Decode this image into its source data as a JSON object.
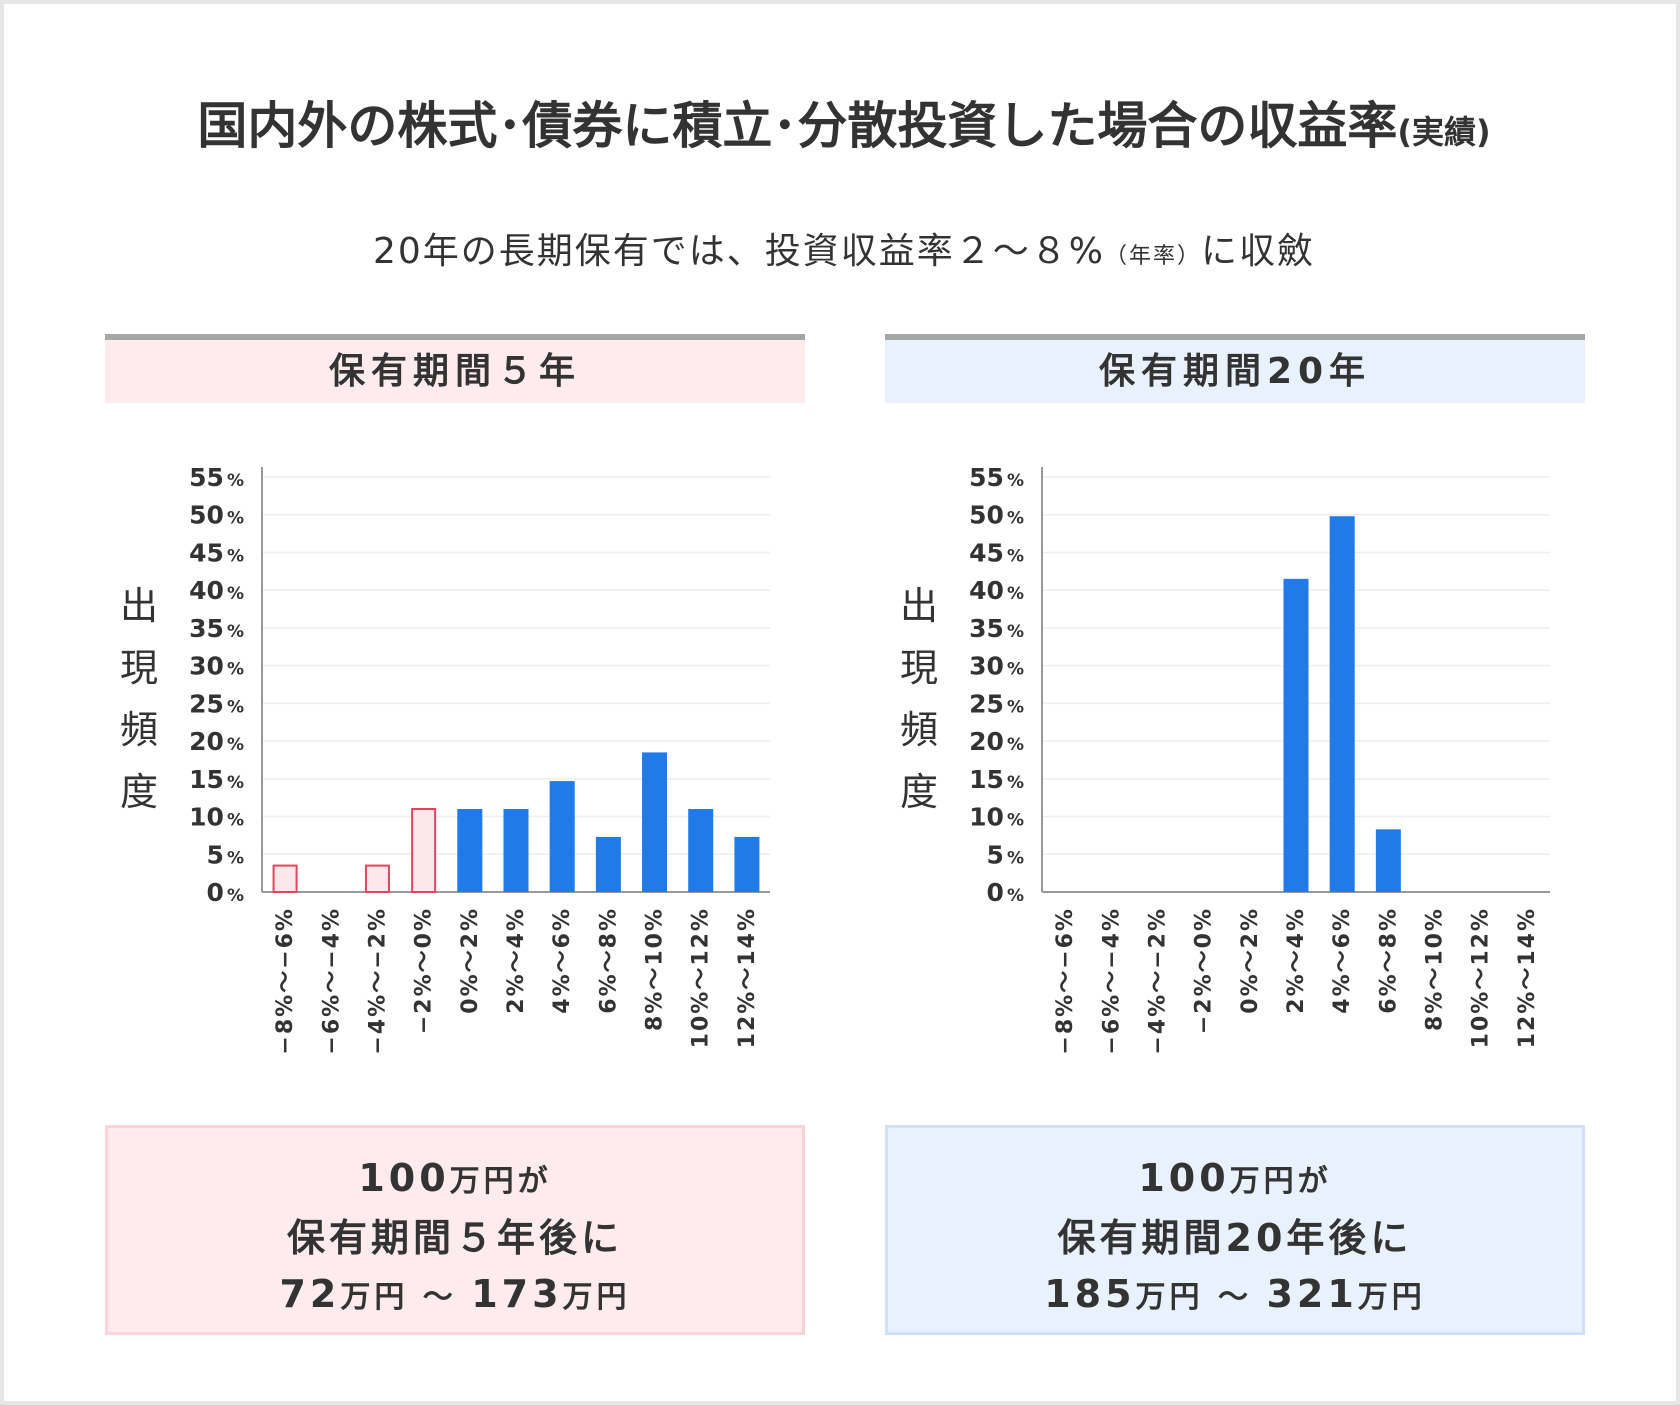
{
  "title": {
    "main": "国内外の株式･債券に積立･分散投資した場合の収益率",
    "suffix": "(実績)"
  },
  "subtitle": {
    "before": "20年の長期保有では、投資収益率２〜８%",
    "note": "（年率）",
    "after": "に収斂"
  },
  "panels": [
    {
      "header": "保有期間５年",
      "result": {
        "line1_num": "100",
        "line1_unit": "万円が",
        "line2": "保有期間５年後に",
        "line3_a": "72",
        "line3_b": "万円 〜 ",
        "line3_c": "173",
        "line3_d": "万円"
      }
    },
    {
      "header": "保有期間20年",
      "result": {
        "line1_num": "100",
        "line1_unit": "万円が",
        "line2": "保有期間20年後に",
        "line3_a": "185",
        "line3_b": "万円 〜 ",
        "line3_c": "321",
        "line3_d": "万円"
      }
    }
  ],
  "colors": {
    "negative_outline": "#e0475f",
    "negative_fill": "#fce8ec",
    "positive": "#207ae8",
    "axis": "#999999",
    "grid": "#eeeeee",
    "text": "#333333"
  },
  "chart_data": [
    {
      "type": "bar",
      "ylabel": "出現頻度",
      "ylim": [
        0,
        55
      ],
      "yticks": [
        "0%",
        "5%",
        "10%",
        "15%",
        "20%",
        "25%",
        "30%",
        "35%",
        "40%",
        "45%",
        "50%",
        "55%"
      ],
      "categories": [
        "−8%〜−6%",
        "−6%〜−4%",
        "−4%〜−2%",
        "−2%〜0%",
        "0%〜2%",
        "2%〜4%",
        "4%〜6%",
        "6%〜8%",
        "8%〜10%",
        "10%〜12%",
        "12%〜14%"
      ],
      "values": [
        3.5,
        0,
        3.5,
        11,
        11,
        11,
        14.7,
        7.3,
        18.5,
        11,
        7.3
      ],
      "negative_count": 4,
      "grid": true
    },
    {
      "type": "bar",
      "ylabel": "出現頻度",
      "ylim": [
        0,
        55
      ],
      "yticks": [
        "0%",
        "5%",
        "10%",
        "15%",
        "20%",
        "25%",
        "30%",
        "35%",
        "40%",
        "45%",
        "50%",
        "55%"
      ],
      "categories": [
        "−8%〜−6%",
        "−6%〜−4%",
        "−4%〜−2%",
        "−2%〜0%",
        "0%〜2%",
        "2%〜4%",
        "4%〜6%",
        "6%〜8%",
        "8%〜10%",
        "10%〜12%",
        "12%〜14%"
      ],
      "values": [
        0,
        0,
        0,
        0,
        0,
        41.5,
        49.8,
        8.3,
        0,
        0,
        0
      ],
      "negative_count": 4,
      "grid": true
    }
  ]
}
